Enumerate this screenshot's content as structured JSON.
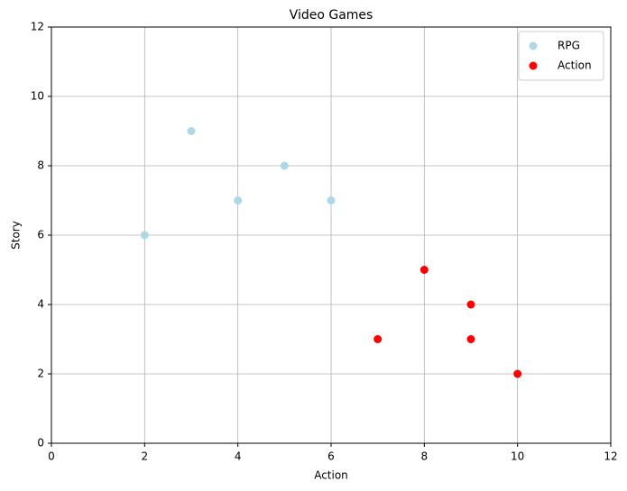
{
  "chart_data": {
    "type": "scatter",
    "title": "Video Games",
    "x_label": "Action",
    "y_label": "Story",
    "series": [
      {
        "name": "RPG",
        "color": "#add8e6",
        "x": [
          2,
          3,
          4,
          5,
          6
        ],
        "values": [
          6,
          9,
          7,
          8,
          7
        ]
      },
      {
        "name": "Action",
        "color": "#ff0000",
        "x": [
          7,
          8,
          9,
          9,
          10
        ],
        "values": [
          3,
          5,
          4,
          3,
          2
        ]
      }
    ],
    "xlim": [
      0,
      12
    ],
    "ylim": [
      0,
      12
    ],
    "xticks": [
      0,
      2,
      4,
      6,
      8,
      10,
      12
    ],
    "yticks": [
      0,
      2,
      4,
      6,
      8,
      10,
      12
    ],
    "grid": true,
    "legend": "upper-right"
  }
}
